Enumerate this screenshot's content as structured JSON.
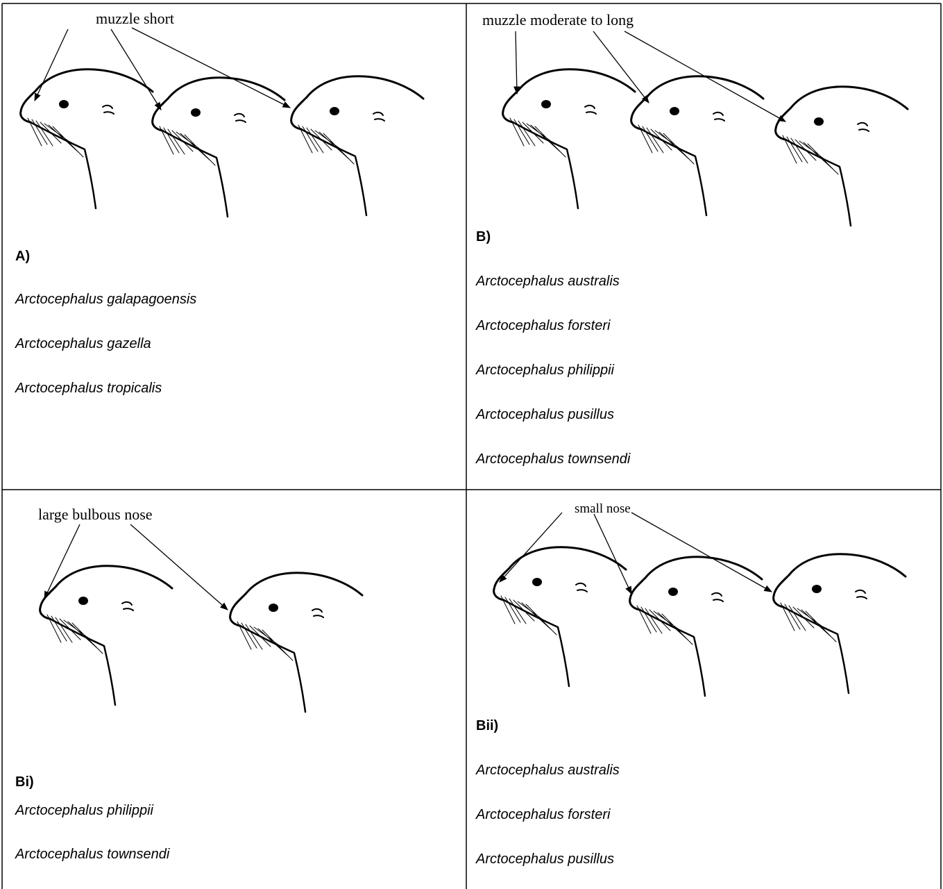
{
  "cells": [
    {
      "annotation": "muzzle short",
      "label": "A)",
      "species": [
        "Arctocephalus galapagoensis",
        "Arctocephalus gazella",
        "Arctocephalus tropicalis"
      ]
    },
    {
      "annotation": "muzzle moderate to long",
      "label": "B)",
      "species": [
        "Arctocephalus australis",
        "Arctocephalus forsteri",
        "Arctocephalus philippii",
        "Arctocephalus pusillus",
        "Arctocephalus townsendi"
      ]
    },
    {
      "annotation": "large bulbous nose",
      "label": "Bi)",
      "species": [
        "Arctocephalus philippii",
        "Arctocephalus townsendi"
      ]
    },
    {
      "annotation": "small nose",
      "label": "Bii)",
      "species": [
        "Arctocephalus australis",
        "Arctocephalus forsteri",
        "Arctocephalus pusillus"
      ]
    }
  ]
}
